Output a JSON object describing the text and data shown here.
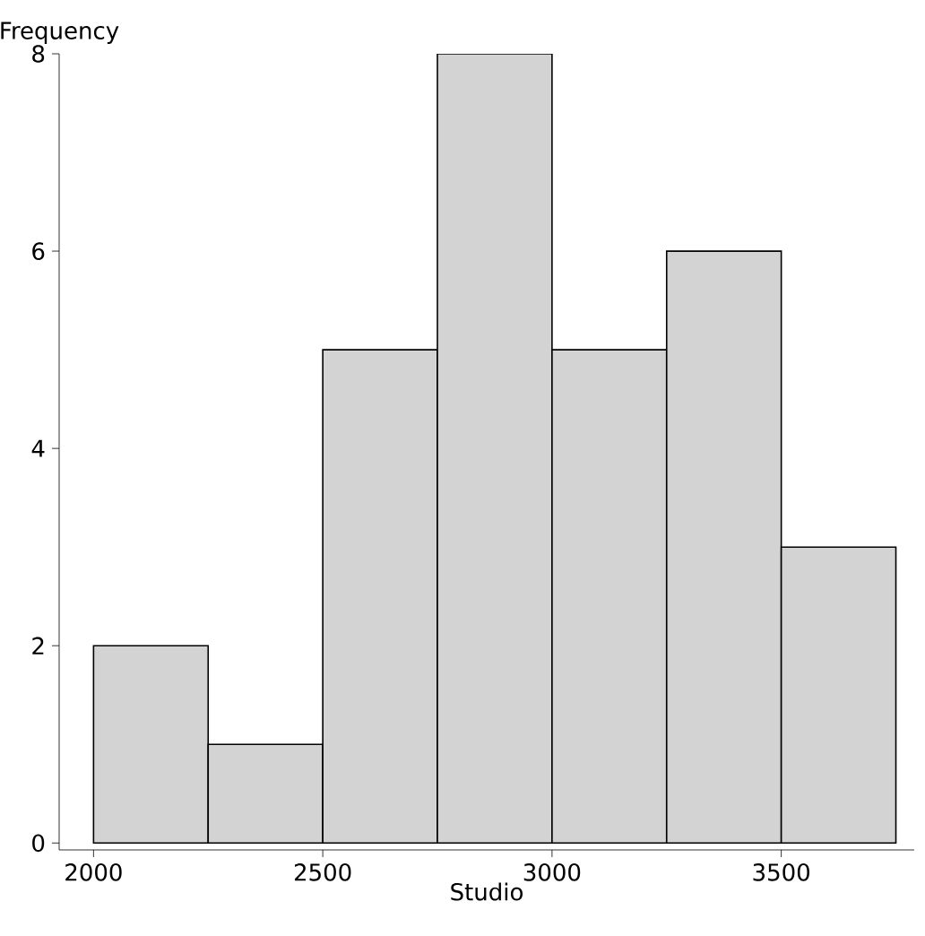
{
  "chart_data": {
    "type": "histogram",
    "xlabel": "Studio",
    "ylabel": "Frequency",
    "bins": [
      2000,
      2250,
      2500,
      2750,
      3000,
      3250,
      3500,
      3750
    ],
    "values": [
      2,
      1,
      5,
      8,
      5,
      6,
      3
    ],
    "color": "#d3d3d3",
    "xlim": [
      1925,
      3790
    ],
    "ylim": [
      -0.07,
      8
    ],
    "xticks": [
      2000,
      2500,
      3000,
      3500
    ],
    "yticks": [
      0,
      2,
      4,
      6,
      8
    ],
    "grid": false
  }
}
